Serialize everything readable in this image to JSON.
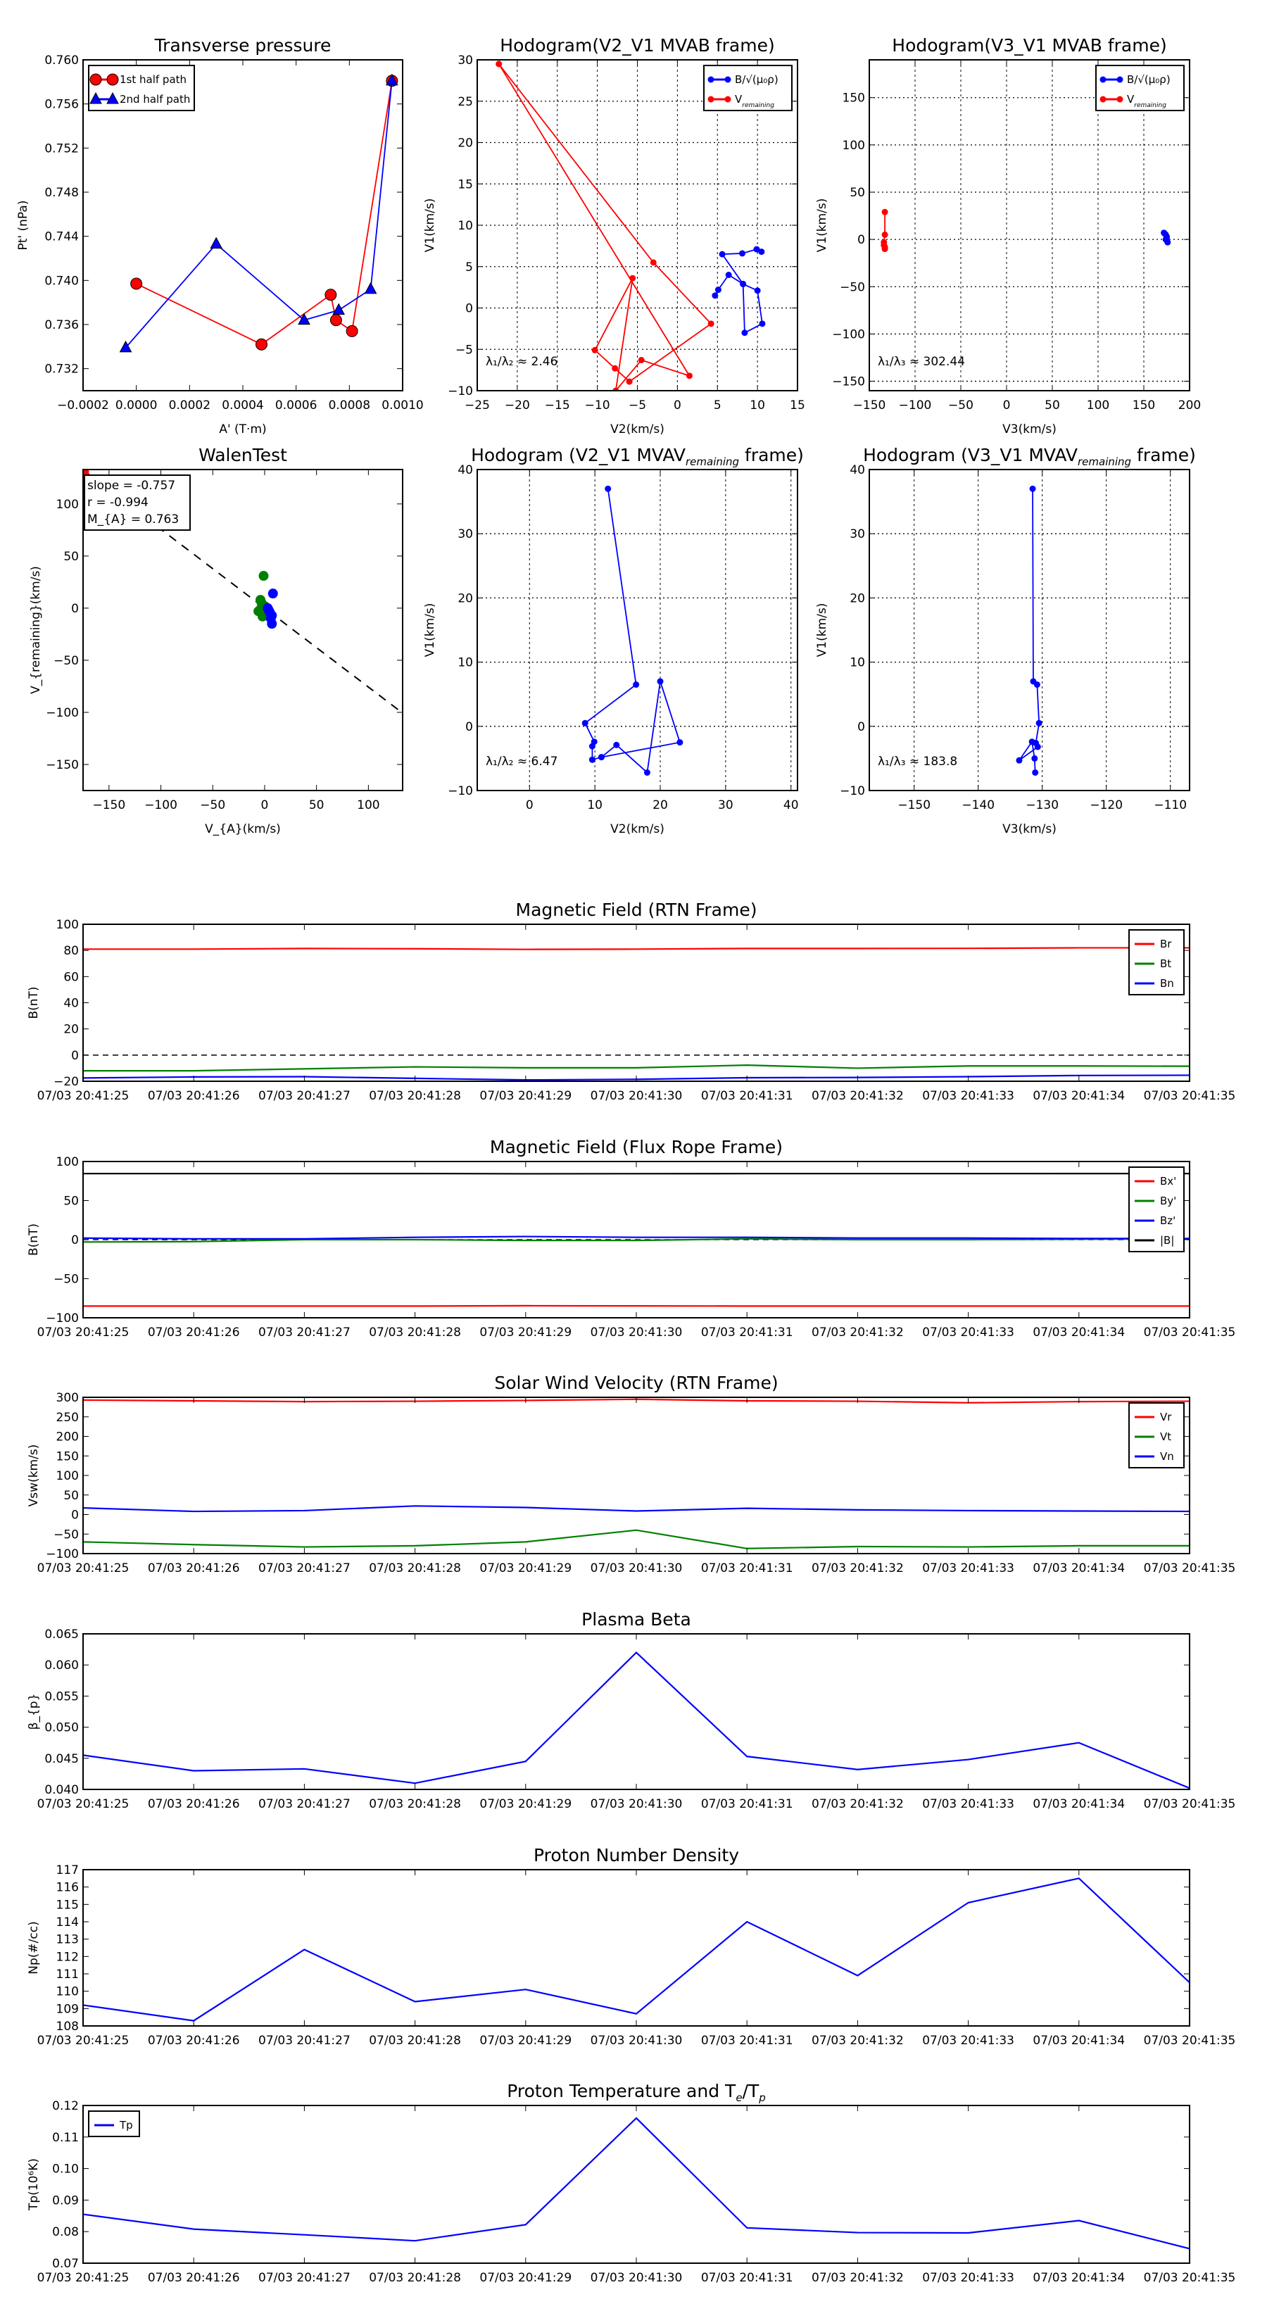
{
  "times": [
    "07/03 20:41:25",
    "07/03 20:41:26",
    "07/03 20:41:27",
    "07/03 20:41:28",
    "07/03 20:41:29",
    "07/03 20:41:30",
    "07/03 20:41:31",
    "07/03 20:41:32",
    "07/03 20:41:33",
    "07/03 20:41:34",
    "07/03 20:41:35"
  ],
  "chart_data": [
    {
      "id": "pt",
      "type": "line",
      "title": "Transverse pressure",
      "xlabel": "A' (T·m)",
      "ylabel": "Pt' (nPa)",
      "xlim": [
        -0.0002,
        0.001
      ],
      "ylim": [
        0.73,
        0.76
      ],
      "xticks": [
        -0.0002,
        0,
        0.0002,
        0.0004,
        0.0006,
        0.0008,
        0.001
      ],
      "xticklabels": [
        "−0.0002",
        "0.0000",
        "0.0002",
        "0.0004",
        "0.0006",
        "0.0008",
        "0.0010"
      ],
      "yticks": [
        0.732,
        0.736,
        0.74,
        0.744,
        0.748,
        0.752,
        0.756,
        0.76
      ],
      "yticklabels": [
        "0.732",
        "0.736",
        "0.740",
        "0.744",
        "0.748",
        "0.752",
        "0.756",
        "0.760"
      ],
      "grid": false,
      "legend": "top-left",
      "series": [
        {
          "name": "1st half path",
          "color": "#ff0000",
          "marker": "circle",
          "x": [
            0.0,
            0.00047,
            0.00073,
            0.00075,
            0.00081,
            0.00096
          ],
          "y": [
            0.7397,
            0.7342,
            0.7387,
            0.7364,
            0.7354,
            0.7581
          ]
        },
        {
          "name": "2nd half path",
          "color": "#0000ff",
          "marker": "triangle",
          "x": [
            -4e-05,
            0.0003,
            0.00063,
            0.00076,
            0.00088,
            0.00096
          ],
          "y": [
            0.7339,
            0.7433,
            0.7364,
            0.7373,
            0.7392,
            0.7581
          ]
        }
      ]
    },
    {
      "id": "h1",
      "type": "line",
      "title": "Hodogram(V2_V1 MVAB frame)",
      "xlabel": "V2(km/s)",
      "ylabel": "V1(km/s)",
      "xlim": [
        -25,
        15
      ],
      "ylim": [
        -10,
        30
      ],
      "xticks": [
        -25,
        -20,
        -15,
        -10,
        -5,
        0,
        5,
        10,
        15
      ],
      "yticks": [
        -10,
        -5,
        0,
        5,
        10,
        15,
        20,
        25,
        30
      ],
      "grid": true,
      "legend": "top-right",
      "annotation": "λ₁/λ₂ ≈ 2.46",
      "series": [
        {
          "name": "B/√(μ₀ρ)",
          "color": "#0000ff",
          "marker": "dot",
          "x": [
            4.7,
            5.1,
            6.4,
            8.2,
            10.0,
            10.6,
            8.4,
            8.2,
            5.6,
            8.1,
            9.9,
            10.5
          ],
          "y": [
            1.5,
            2.2,
            4.0,
            2.9,
            2.1,
            -1.9,
            -3.0,
            2.9,
            6.5,
            6.6,
            7.1,
            6.8
          ]
        },
        {
          "name": "V_{remaining}",
          "color": "#ff0000",
          "marker": "dot",
          "x": [
            -22.3,
            -3.0,
            4.2,
            -6.0,
            -7.8,
            -10.3,
            -5.6,
            -7.7,
            -4.5,
            1.5,
            -22.3
          ],
          "y": [
            29.5,
            5.5,
            -1.9,
            -8.9,
            -7.3,
            -5.1,
            3.6,
            -10.0,
            -6.3,
            -8.2,
            29.5
          ]
        }
      ]
    },
    {
      "id": "h2",
      "type": "line",
      "title": "Hodogram(V3_V1 MVAB frame)",
      "xlabel": "V3(km/s)",
      "ylabel": "V1(km/s)",
      "xlim": [
        -150,
        200
      ],
      "ylim": [
        -160,
        190
      ],
      "xticks": [
        -150,
        -100,
        -50,
        0,
        50,
        100,
        150,
        200
      ],
      "yticks": [
        -150,
        -100,
        -50,
        0,
        50,
        100,
        150
      ],
      "grid": true,
      "legend": "top-right",
      "annotation": "λ₁/λ₃ ≈ 302.44",
      "series": [
        {
          "name": "B/√(μ₀ρ)",
          "color": "#0000ff",
          "marker": "dot",
          "x": [
            172,
            174,
            175,
            176,
            174,
            173,
            175
          ],
          "y": [
            7,
            5,
            2,
            -3,
            0,
            6,
            3
          ]
        },
        {
          "name": "V_{remaining}",
          "color": "#ff0000",
          "marker": "dot",
          "x": [
            -133,
            -133,
            -134,
            -133,
            -133,
            -134
          ],
          "y": [
            29,
            5,
            -3,
            -8,
            -10,
            -6
          ]
        }
      ]
    },
    {
      "id": "walen",
      "type": "scatter",
      "title": "WalenTest",
      "xlabel": "V_{A}(km/s)",
      "ylabel": "V_{remaining}(km/s)",
      "xlim": [
        -175,
        133
      ],
      "ylim": [
        -175,
        133
      ],
      "xticks": [
        -150,
        -100,
        -50,
        0,
        50,
        100
      ],
      "yticks": [
        -150,
        -100,
        -50,
        0,
        50,
        100
      ],
      "grid": false,
      "fit_slope": -0.757,
      "stats": [
        "slope = -0.757",
        "r = -0.994",
        "M_{A} = 0.763"
      ],
      "series": [
        {
          "name": "green",
          "color": "#008000",
          "x": [
            -1,
            -4,
            -3,
            -6,
            -2,
            0,
            -4
          ],
          "y": [
            31,
            8,
            5,
            -3,
            -8,
            2,
            -1
          ]
        },
        {
          "name": "blue",
          "color": "#0000ff",
          "x": [
            8,
            3,
            5,
            7,
            6,
            7,
            4
          ],
          "y": [
            14,
            0,
            -4,
            -7,
            -10,
            -15,
            -2
          ]
        },
        {
          "name": "red",
          "color": "#ff0000",
          "x": [
            -174
          ],
          "y": [
            131
          ]
        }
      ]
    },
    {
      "id": "h3",
      "type": "line",
      "title": "Hodogram (V2_V1 MVAV_{remaining} frame)",
      "xlabel": "V2(km/s)",
      "ylabel": "V1(km/s)",
      "xlim": [
        -8,
        41
      ],
      "ylim": [
        -10,
        40
      ],
      "xticks": [
        0,
        10,
        20,
        30,
        40
      ],
      "yticks": [
        -10,
        0,
        10,
        20,
        30,
        40
      ],
      "grid": true,
      "annotation": "λ₁/λ₂ ≈ 6.47",
      "series": [
        {
          "name": "B",
          "color": "#0000ff",
          "marker": "dot",
          "x": [
            12.0,
            16.3,
            8.5,
            9.9,
            9.6,
            9.6,
            11.0,
            23.0,
            20.0,
            18.0,
            13.3,
            11.0,
            9.6
          ],
          "y": [
            37.0,
            6.5,
            0.5,
            -2.4,
            -3.1,
            -5.2,
            -4.8,
            -2.5,
            7.0,
            -7.2,
            -2.9,
            -4.8,
            -5.2
          ]
        }
      ]
    },
    {
      "id": "h4",
      "type": "line",
      "title": "Hodogram (V3_V1 MVAV_{remaining} frame)",
      "xlabel": "V3(km/s)",
      "ylabel": "V1(km/s)",
      "xlim": [
        -157,
        -107
      ],
      "ylim": [
        -10,
        40
      ],
      "xticks": [
        -150,
        -140,
        -130,
        -120,
        -110
      ],
      "yticks": [
        -10,
        0,
        10,
        20,
        30,
        40
      ],
      "grid": true,
      "annotation": "λ₁/λ₃ ≈ 183.8",
      "series": [
        {
          "name": "B",
          "color": "#0000ff",
          "marker": "dot",
          "x": [
            -131.5,
            -131.4,
            -130.8,
            -130.5,
            -131.0,
            -130.7,
            -133.6,
            -131.6,
            -131.2,
            -131.1
          ],
          "y": [
            37.0,
            7.0,
            6.5,
            0.5,
            -2.6,
            -3.2,
            -5.3,
            -2.4,
            -5.0,
            -7.2
          ]
        }
      ]
    },
    {
      "id": "brtn",
      "type": "line",
      "title": "Magnetic Field (RTN Frame)",
      "ylabel": "B(nT)",
      "ylim": [
        -20,
        100
      ],
      "yticks": [
        -20,
        0,
        20,
        40,
        60,
        80,
        100
      ],
      "zero_line": true,
      "legend": "top-right",
      "series": [
        {
          "name": "Br",
          "color": "#ff0000",
          "y": [
            81,
            81,
            81.5,
            81.3,
            80.8,
            81,
            81.5,
            81.5,
            81.6,
            82,
            82
          ]
        },
        {
          "name": "Bt",
          "color": "#008000",
          "y": [
            -12,
            -12,
            -10.5,
            -9,
            -9.7,
            -9.7,
            -7.7,
            -10,
            -8.3,
            -8.3,
            -8.5
          ]
        },
        {
          "name": "Bn",
          "color": "#0000ff",
          "y": [
            -17.5,
            -16.7,
            -16.5,
            -17.8,
            -19,
            -18.5,
            -17.3,
            -17.1,
            -16.5,
            -15.6,
            -15.4
          ]
        }
      ]
    },
    {
      "id": "bfr",
      "type": "line",
      "title": "Magnetic Field (Flux Rope Frame)",
      "ylabel": "B(nT)",
      "ylim": [
        -100,
        100
      ],
      "yticks": [
        -100,
        -50,
        0,
        50,
        100
      ],
      "zero_line": true,
      "legend": "top-right",
      "series": [
        {
          "name": "Bx'",
          "color": "#ff0000",
          "y": [
            -85,
            -85,
            -85,
            -85,
            -84.6,
            -84.8,
            -85,
            -85,
            -85,
            -85,
            -85
          ]
        },
        {
          "name": "By'",
          "color": "#008000",
          "y": [
            -3,
            -2.5,
            0,
            0,
            -1,
            -1,
            1,
            0,
            0,
            0.5,
            1
          ]
        },
        {
          "name": "Bz'",
          "color": "#0000ff",
          "y": [
            2,
            1,
            1,
            3,
            4,
            3,
            3,
            2,
            2,
            1.5,
            1.5
          ]
        },
        {
          "name": "|B|",
          "color": "#000000",
          "y": [
            84.5,
            84.5,
            84.5,
            84.6,
            84.3,
            84.4,
            84.5,
            84.5,
            84.5,
            84.6,
            84.6
          ]
        }
      ]
    },
    {
      "id": "vel",
      "type": "line",
      "title": "Solar Wind Velocity (RTN Frame)",
      "ylabel": "Vsw(km/s)",
      "ylim": [
        -100,
        300
      ],
      "yticks": [
        -100,
        -50,
        0,
        50,
        100,
        150,
        200,
        250,
        300
      ],
      "legend": "top-right",
      "series": [
        {
          "name": "Vr",
          "color": "#ff0000",
          "y": [
            293,
            291,
            289,
            290,
            292,
            295,
            291,
            290,
            286,
            289,
            290
          ]
        },
        {
          "name": "Vt",
          "color": "#008000",
          "y": [
            -70,
            -77,
            -83,
            -80,
            -70,
            -40,
            -87,
            -82,
            -83,
            -80,
            -80
          ]
        },
        {
          "name": "Vn",
          "color": "#0000ff",
          "y": [
            17,
            8,
            10,
            22,
            18,
            9,
            16,
            12,
            10,
            9,
            8
          ]
        }
      ]
    },
    {
      "id": "beta",
      "type": "line",
      "title": "Plasma Beta",
      "ylabel": "β_{p}",
      "ylim": [
        0.04,
        0.065
      ],
      "yticks": [
        0.04,
        0.045,
        0.05,
        0.055,
        0.06,
        0.065
      ],
      "ytickfmt": 3,
      "series": [
        {
          "name": "beta",
          "color": "#0000ff",
          "y": [
            0.0455,
            0.043,
            0.0433,
            0.041,
            0.0445,
            0.062,
            0.0453,
            0.0432,
            0.0448,
            0.0475,
            0.0402
          ]
        }
      ]
    },
    {
      "id": "np",
      "type": "line",
      "title": "Proton Number Density",
      "ylabel": "Np(#/cc)",
      "ylim": [
        108,
        117
      ],
      "yticks": [
        108,
        109,
        110,
        111,
        112,
        113,
        114,
        115,
        116,
        117
      ],
      "series": [
        {
          "name": "Np",
          "color": "#0000ff",
          "y": [
            109.2,
            108.3,
            112.4,
            109.4,
            110.1,
            108.7,
            114.0,
            110.9,
            115.1,
            116.5,
            110.5
          ]
        }
      ]
    },
    {
      "id": "tp",
      "type": "line",
      "title": "Proton Temperature and T_{e}/T_{p}",
      "ylabel": "Tp(10⁶K)",
      "ylim": [
        0.07,
        0.12
      ],
      "yticks": [
        0.07,
        0.08,
        0.09,
        0.1,
        0.11,
        0.12
      ],
      "ytickfmt": 2,
      "legend": "top-left",
      "series": [
        {
          "name": "Tp",
          "color": "#0000ff",
          "y": [
            0.0855,
            0.0808,
            0.079,
            0.0771,
            0.0822,
            0.116,
            0.0812,
            0.0797,
            0.0796,
            0.0835,
            0.0746
          ]
        }
      ]
    }
  ]
}
